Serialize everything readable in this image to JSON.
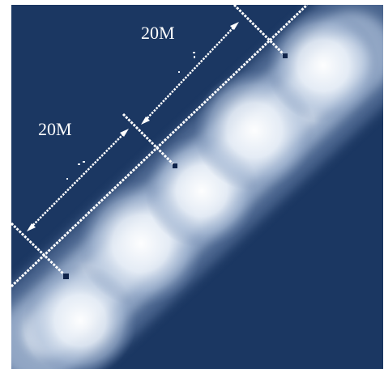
{
  "diagram": {
    "labels": {
      "upper": "20M",
      "lower": "20M"
    },
    "colors": {
      "background": "#1b3762",
      "glow_core": "#ffffff",
      "glow_edge": "#a8bbd6",
      "line": "#ffffff",
      "marker": "#10244a"
    }
  }
}
